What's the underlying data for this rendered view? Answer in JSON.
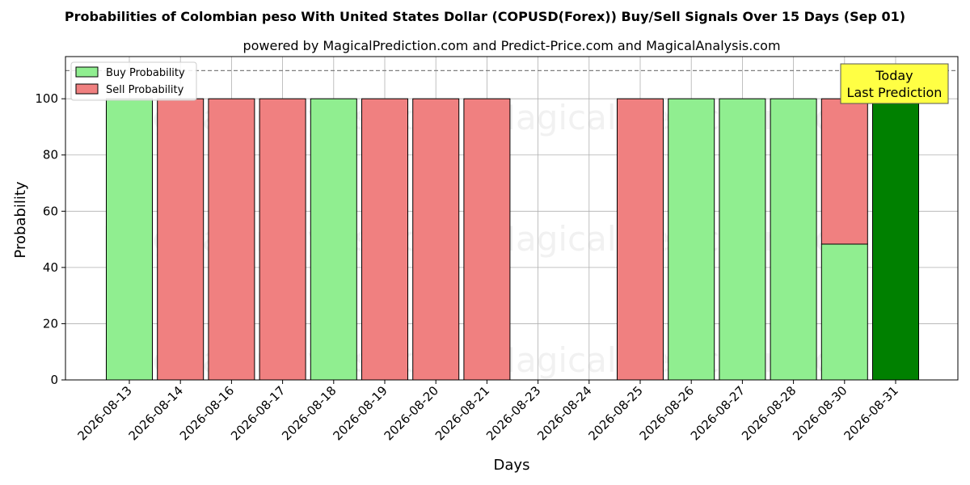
{
  "chart_data": {
    "type": "bar",
    "title": "Probabilities of Colombian peso With United States Dollar (COPUSD(Forex)) Buy/Sell Signals Over 15 Days (Sep 01)",
    "subtitle": "powered by MagicalPrediction.com and Predict-Price.com and MagicalAnalysis.com",
    "xlabel": "Days",
    "ylabel": "Probability",
    "ylim": [
      0,
      115
    ],
    "yticks": [
      0,
      20,
      40,
      60,
      80,
      100
    ],
    "reference_line": 110,
    "grid": true,
    "legend_position": "top-left",
    "categories": [
      "2026-08-13",
      "2026-08-14",
      "2026-08-16",
      "2026-08-17",
      "2026-08-18",
      "2026-08-19",
      "2026-08-20",
      "2026-08-21",
      "2026-08-23",
      "2026-08-24",
      "2026-08-25",
      "2026-08-26",
      "2026-08-27",
      "2026-08-28",
      "2026-08-30",
      "2026-08-31"
    ],
    "series": [
      {
        "name": "Buy Probability",
        "color": "#90ee90",
        "values": [
          100,
          0,
          0,
          0,
          100,
          0,
          0,
          0,
          0,
          0,
          0,
          100,
          100,
          100,
          48.3,
          100
        ]
      },
      {
        "name": "Sell Probability",
        "color": "#f08080",
        "values": [
          0,
          100,
          100,
          100,
          0,
          100,
          100,
          100,
          0,
          0,
          100,
          0,
          0,
          0,
          51.7,
          0
        ]
      }
    ],
    "highlight": {
      "index": 15,
      "color": "#008000"
    },
    "annotation": {
      "lines": [
        "Today",
        "Last Prediction"
      ],
      "color": "#ffff44"
    },
    "watermarks": [
      "MagicalAnalysis.com",
      "MagicalPrediction.com"
    ]
  }
}
